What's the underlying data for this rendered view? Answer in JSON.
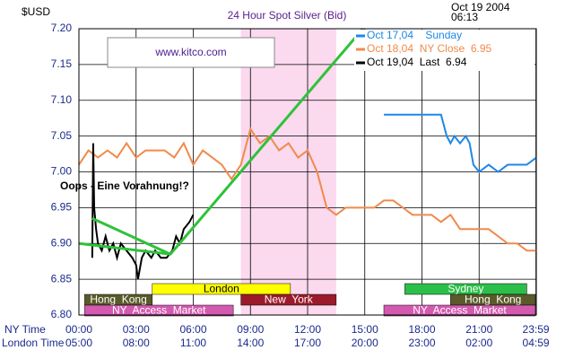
{
  "chart_data": {
    "type": "line",
    "title": "24 Hour Spot Silver (Bid)",
    "y_unit_label": "$USD",
    "timestamp": [
      "Oct 19 2004",
      "06:13"
    ],
    "watermark": "www.kitco.com",
    "annotation_text": "Oops - Eine Vorahnung!?",
    "x_row_labels": [
      "NY Time",
      "London Time"
    ],
    "xlim": [
      0,
      24
    ],
    "ylim": [
      6.8,
      7.2
    ],
    "grid": true,
    "legend_position": "top-right",
    "yticks": [
      {
        "value": 6.8,
        "label": "6.80"
      },
      {
        "value": 6.85,
        "label": "6.85"
      },
      {
        "value": 6.9,
        "label": "6.90"
      },
      {
        "value": 6.95,
        "label": "6.95"
      },
      {
        "value": 7.0,
        "label": "7.00"
      },
      {
        "value": 7.05,
        "label": "7.05"
      },
      {
        "value": 7.1,
        "label": "7.10"
      },
      {
        "value": 7.15,
        "label": "7.15"
      },
      {
        "value": 7.2,
        "label": "7.20"
      }
    ],
    "xticks": [
      {
        "value": 0,
        "label": "00:00"
      },
      {
        "value": 3,
        "label": "03:00"
      },
      {
        "value": 6,
        "label": "06:00"
      },
      {
        "value": 9,
        "label": "09:00"
      },
      {
        "value": 12,
        "label": "12:00"
      },
      {
        "value": 15,
        "label": "15:00"
      },
      {
        "value": 18,
        "label": "18:00"
      },
      {
        "value": 21,
        "label": "21:00"
      },
      {
        "value": 23.98,
        "label": "23:59"
      }
    ],
    "xtick_labels_london": [
      "05:00",
      "08:00",
      "11:00",
      "14:00",
      "17:00",
      "20:00",
      "23:00",
      "02:00",
      "04:59"
    ],
    "series": [
      {
        "name": "Oct 17,04    Sunday",
        "color": "#1e88e5",
        "x": [
          16,
          17,
          18,
          19,
          19.3,
          19.5,
          19.7,
          20,
          20.3,
          20.5,
          20.7,
          21,
          21.5,
          22,
          22.5,
          23,
          23.5,
          24
        ],
        "values": [
          7.08,
          7.08,
          7.08,
          7.08,
          7.05,
          7.04,
          7.05,
          7.04,
          7.05,
          7.04,
          7.01,
          7.0,
          7.01,
          7.0,
          7.01,
          7.01,
          7.01,
          7.02
        ]
      },
      {
        "name": "Oct 18,04  NY Close  6.95",
        "color": "#f08a4b",
        "x": [
          0,
          0.5,
          1,
          1.5,
          2,
          2.5,
          3,
          3.5,
          4,
          4.5,
          5,
          5.5,
          6,
          6.5,
          7,
          7.5,
          8,
          8.5,
          9,
          9.5,
          10,
          10.5,
          11,
          11.5,
          12,
          12.5,
          13,
          13.5,
          14,
          15,
          15.5,
          16,
          16.5,
          17,
          17.5,
          18,
          18.5,
          19,
          19.5,
          20,
          20.5,
          21,
          21.5,
          22,
          22.5,
          23,
          23.5,
          24
        ],
        "values": [
          7.01,
          7.03,
          7.02,
          7.03,
          7.02,
          7.04,
          7.02,
          7.03,
          7.03,
          7.03,
          7.02,
          7.04,
          7.01,
          7.03,
          7.02,
          7.01,
          6.99,
          7.01,
          7.06,
          7.04,
          7.05,
          7.03,
          7.04,
          7.02,
          7.03,
          7.0,
          6.95,
          6.94,
          6.95,
          6.95,
          6.95,
          6.96,
          6.96,
          6.95,
          6.94,
          6.94,
          6.94,
          6.93,
          6.94,
          6.92,
          6.92,
          6.92,
          6.92,
          6.91,
          6.9,
          6.9,
          6.89,
          6.89
        ]
      },
      {
        "name": "Oct 19,04  Last  6.94",
        "color": "#000000",
        "x": [
          0.7,
          0.75,
          0.8,
          0.9,
          1,
          1.2,
          1.4,
          1.6,
          1.8,
          2,
          2.2,
          2.5,
          2.8,
          3,
          3.1,
          3.3,
          3.5,
          3.8,
          4,
          4.3,
          4.6,
          4.9,
          5.1,
          5.3,
          5.5,
          5.8,
          6
        ],
        "values": [
          6.88,
          7.04,
          6.95,
          6.92,
          6.9,
          6.89,
          6.91,
          6.89,
          6.9,
          6.88,
          6.9,
          6.89,
          6.88,
          6.87,
          6.85,
          6.88,
          6.89,
          6.88,
          6.89,
          6.88,
          6.88,
          6.89,
          6.91,
          6.9,
          6.92,
          6.93,
          6.94
        ]
      }
    ],
    "shaded_span": {
      "start": 8.5,
      "end": 13.5,
      "color": "#fbd9ee"
    },
    "sessions": [
      {
        "label": "London",
        "start": 3.85,
        "end": 11.1,
        "row": 0,
        "color": "#ffff00",
        "text_color": "#000000"
      },
      {
        "label": "Sydney",
        "start": 17.1,
        "end": 23.5,
        "row": 0,
        "color": "#2bbf4a",
        "text_color": "#ffffff"
      },
      {
        "label": "Hong  Kong",
        "start": 0.3,
        "end": 3.85,
        "row": 1,
        "color": "#5a5a2a",
        "text_color": "#ffffff"
      },
      {
        "label": "New  York",
        "start": 8.5,
        "end": 13.5,
        "row": 1,
        "color": "#9b1b2b",
        "text_color": "#ffffff"
      },
      {
        "label": "Hong  Kong",
        "start": 19.5,
        "end": 23.95,
        "row": 1,
        "color": "#5a5a2a",
        "text_color": "#ffffff"
      },
      {
        "label": "NY  Access  Market",
        "start": 0.3,
        "end": 8.1,
        "row": 2,
        "color": "#d45ab0",
        "text_color": "#ffffff"
      },
      {
        "label": "NY  Access  Market",
        "start": 16,
        "end": 23.95,
        "row": 2,
        "color": "#d45ab0",
        "text_color": "#ffffff"
      }
    ],
    "annotation_lines": [
      {
        "color": "#2ec23a",
        "x": [
          0,
          4.8,
          14.9
        ],
        "y": [
          6.9,
          6.885,
          7.2
        ]
      },
      {
        "color": "#2ec23a",
        "x": [
          0.7,
          4.8
        ],
        "y": [
          6.935,
          6.885
        ]
      }
    ]
  }
}
